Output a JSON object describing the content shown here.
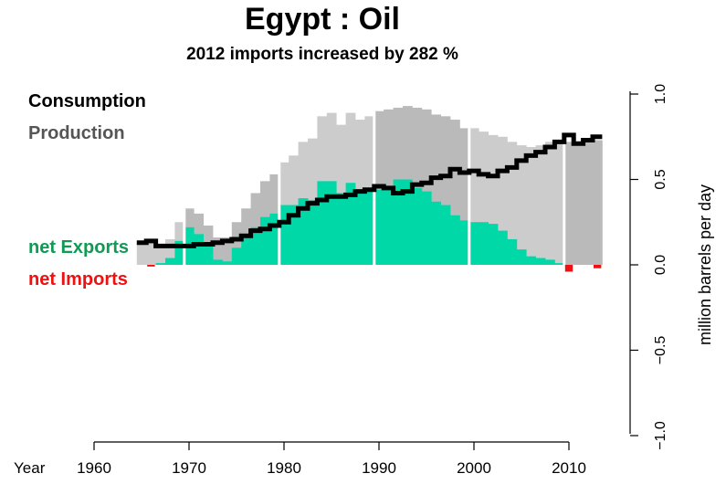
{
  "chart_data": {
    "type": "bar",
    "title": "Egypt :  Oil",
    "subtitle": "2012 imports increased by 282 %",
    "xlabel": "Year",
    "ylabel": "million barrels per day",
    "xlim": [
      1959,
      2014
    ],
    "ylim": [
      -1.0,
      1.0
    ],
    "x_ticks": [
      1960,
      1970,
      1980,
      1990,
      2000,
      2010
    ],
    "y_ticks": [
      -1.0,
      -0.5,
      0.0,
      0.5,
      1.0
    ],
    "y_tick_labels": [
      "−1.0",
      "−0.5",
      "0.0",
      "0.5",
      "1.0"
    ],
    "legend": {
      "consumption": "Consumption",
      "production": "Production",
      "net_exports": "net Exports",
      "net_imports": "net Imports",
      "placement": "left"
    },
    "colors": {
      "consumption": "#000000",
      "production_light": "#cccccc",
      "production_dark": "#bababa",
      "production_label": "#555555",
      "net_exports": "#00d8a8",
      "net_exports_label": "#119955",
      "net_imports": "#ee1111",
      "decade_line": "#ffffff"
    },
    "years": [
      1965,
      1966,
      1967,
      1968,
      1969,
      1970,
      1971,
      1972,
      1973,
      1974,
      1975,
      1976,
      1977,
      1978,
      1979,
      1980,
      1981,
      1982,
      1983,
      1984,
      1985,
      1986,
      1987,
      1988,
      1989,
      1990,
      1991,
      1992,
      1993,
      1994,
      1995,
      1996,
      1997,
      1998,
      1999,
      2000,
      2001,
      2002,
      2003,
      2004,
      2005,
      2006,
      2007,
      2008,
      2009,
      2010,
      2011,
      2012,
      2013
    ],
    "series": [
      {
        "name": "Production",
        "values": [
          0.13,
          0.13,
          0.12,
          0.15,
          0.25,
          0.33,
          0.3,
          0.23,
          0.16,
          0.16,
          0.25,
          0.33,
          0.42,
          0.49,
          0.53,
          0.6,
          0.64,
          0.72,
          0.74,
          0.87,
          0.89,
          0.82,
          0.89,
          0.85,
          0.87,
          0.9,
          0.91,
          0.92,
          0.93,
          0.92,
          0.91,
          0.88,
          0.87,
          0.85,
          0.8,
          0.8,
          0.78,
          0.76,
          0.75,
          0.72,
          0.7,
          0.69,
          0.7,
          0.72,
          0.73,
          0.72,
          0.71,
          0.73,
          0.73
        ]
      },
      {
        "name": "Consumption",
        "values": [
          0.13,
          0.14,
          0.11,
          0.11,
          0.11,
          0.11,
          0.12,
          0.12,
          0.13,
          0.14,
          0.15,
          0.17,
          0.2,
          0.21,
          0.23,
          0.25,
          0.29,
          0.33,
          0.36,
          0.38,
          0.4,
          0.4,
          0.41,
          0.43,
          0.44,
          0.46,
          0.45,
          0.42,
          0.43,
          0.47,
          0.48,
          0.51,
          0.52,
          0.56,
          0.54,
          0.55,
          0.53,
          0.52,
          0.55,
          0.57,
          0.61,
          0.64,
          0.66,
          0.69,
          0.72,
          0.76,
          0.71,
          0.73,
          0.75
        ]
      }
    ]
  }
}
